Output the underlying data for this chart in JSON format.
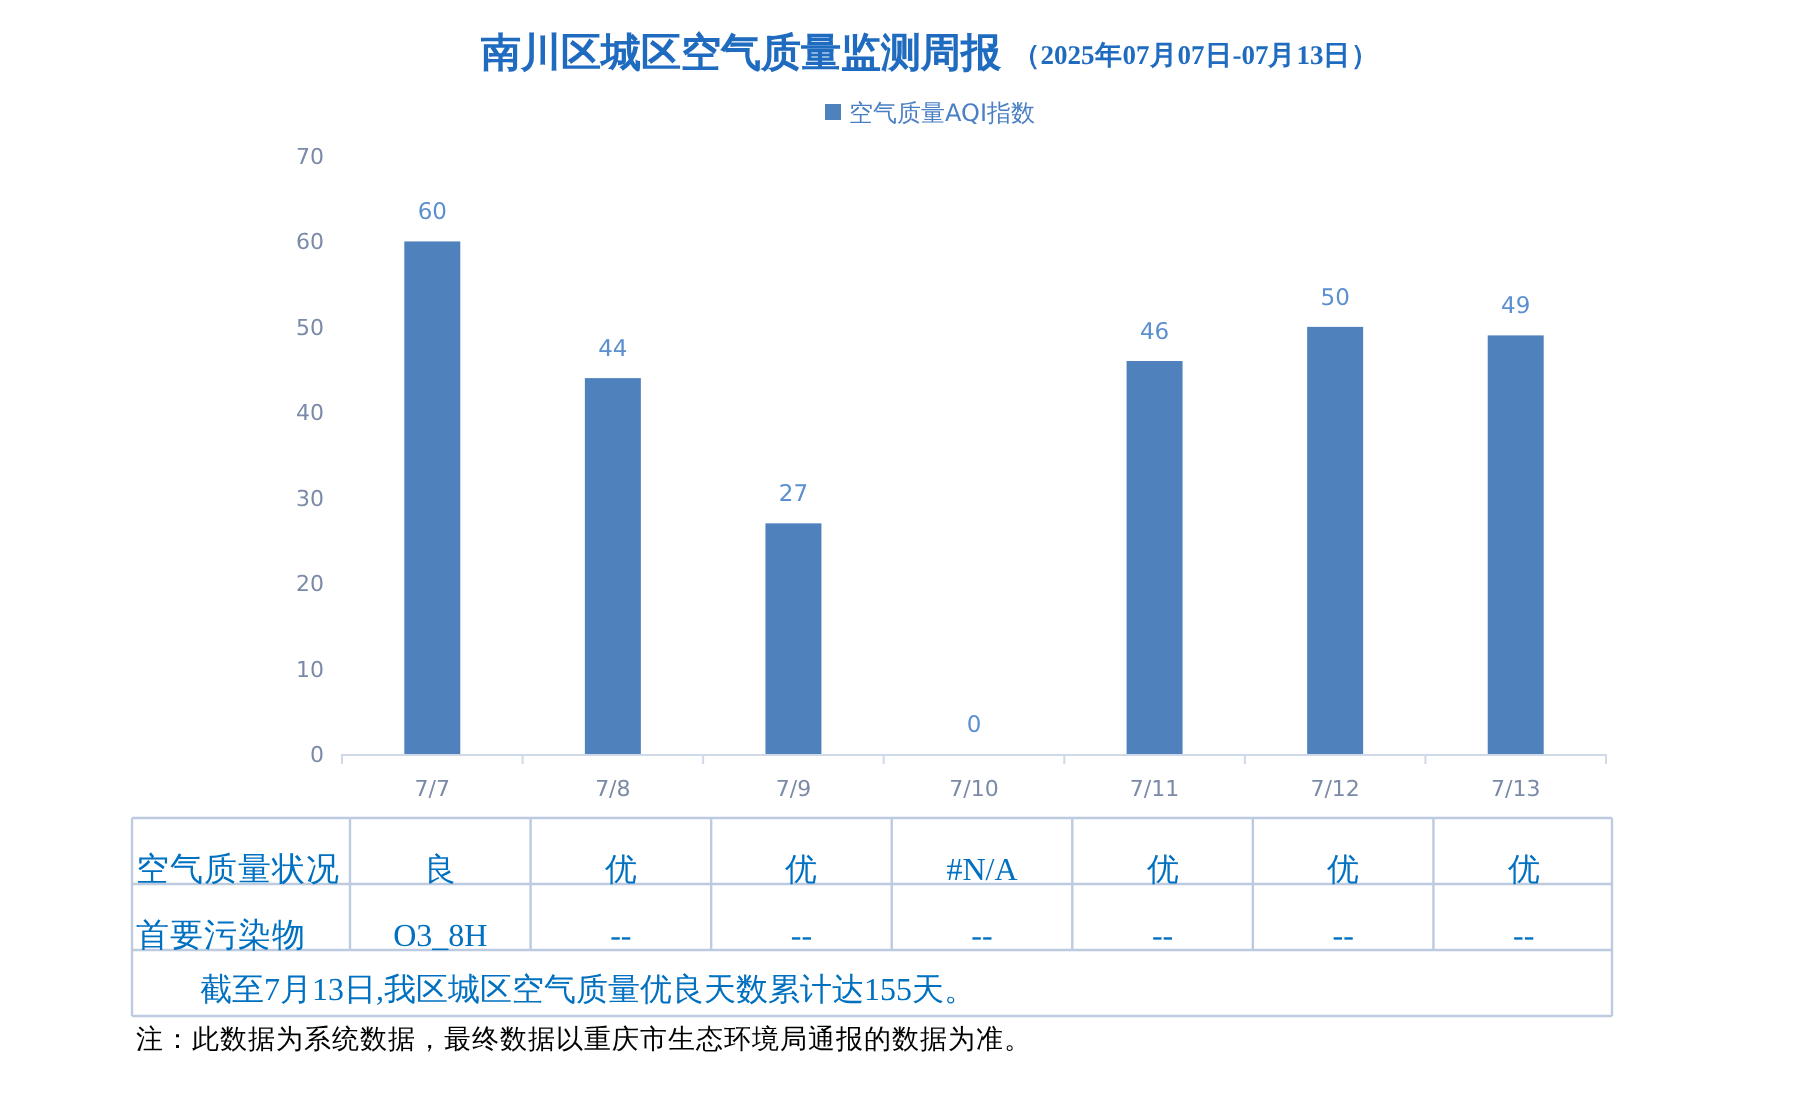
{
  "chart_data": {
    "type": "bar",
    "title": "南川区城区空气质量监测周报",
    "subtitle": "（2025年07月07日-07月13日）",
    "categories": [
      "7/7",
      "7/8",
      "7/9",
      "7/10",
      "7/11",
      "7/12",
      "7/13"
    ],
    "series": [
      {
        "name": "空气质量AQI指数",
        "color": "#4f81bd",
        "values": [
          60,
          44,
          27,
          0,
          46,
          50,
          49
        ]
      }
    ],
    "ylim": [
      0,
      70
    ],
    "yticks": [
      0,
      10,
      20,
      30,
      40,
      50,
      60,
      70
    ],
    "data_labels": true,
    "legend": "top",
    "annotations": [
      "空气质量状况",
      "良",
      "优",
      "优",
      "#N/A",
      "优",
      "优",
      "优",
      "首要污染物",
      "O3_8H",
      "--",
      "--",
      "--",
      "--",
      "--",
      "--",
      "截至7月13日,我区城区空气质量优良天数累计达155天。",
      "注：此数据为系统数据，最终数据以重庆市生态环境局通报的数据为准。"
    ]
  }
}
